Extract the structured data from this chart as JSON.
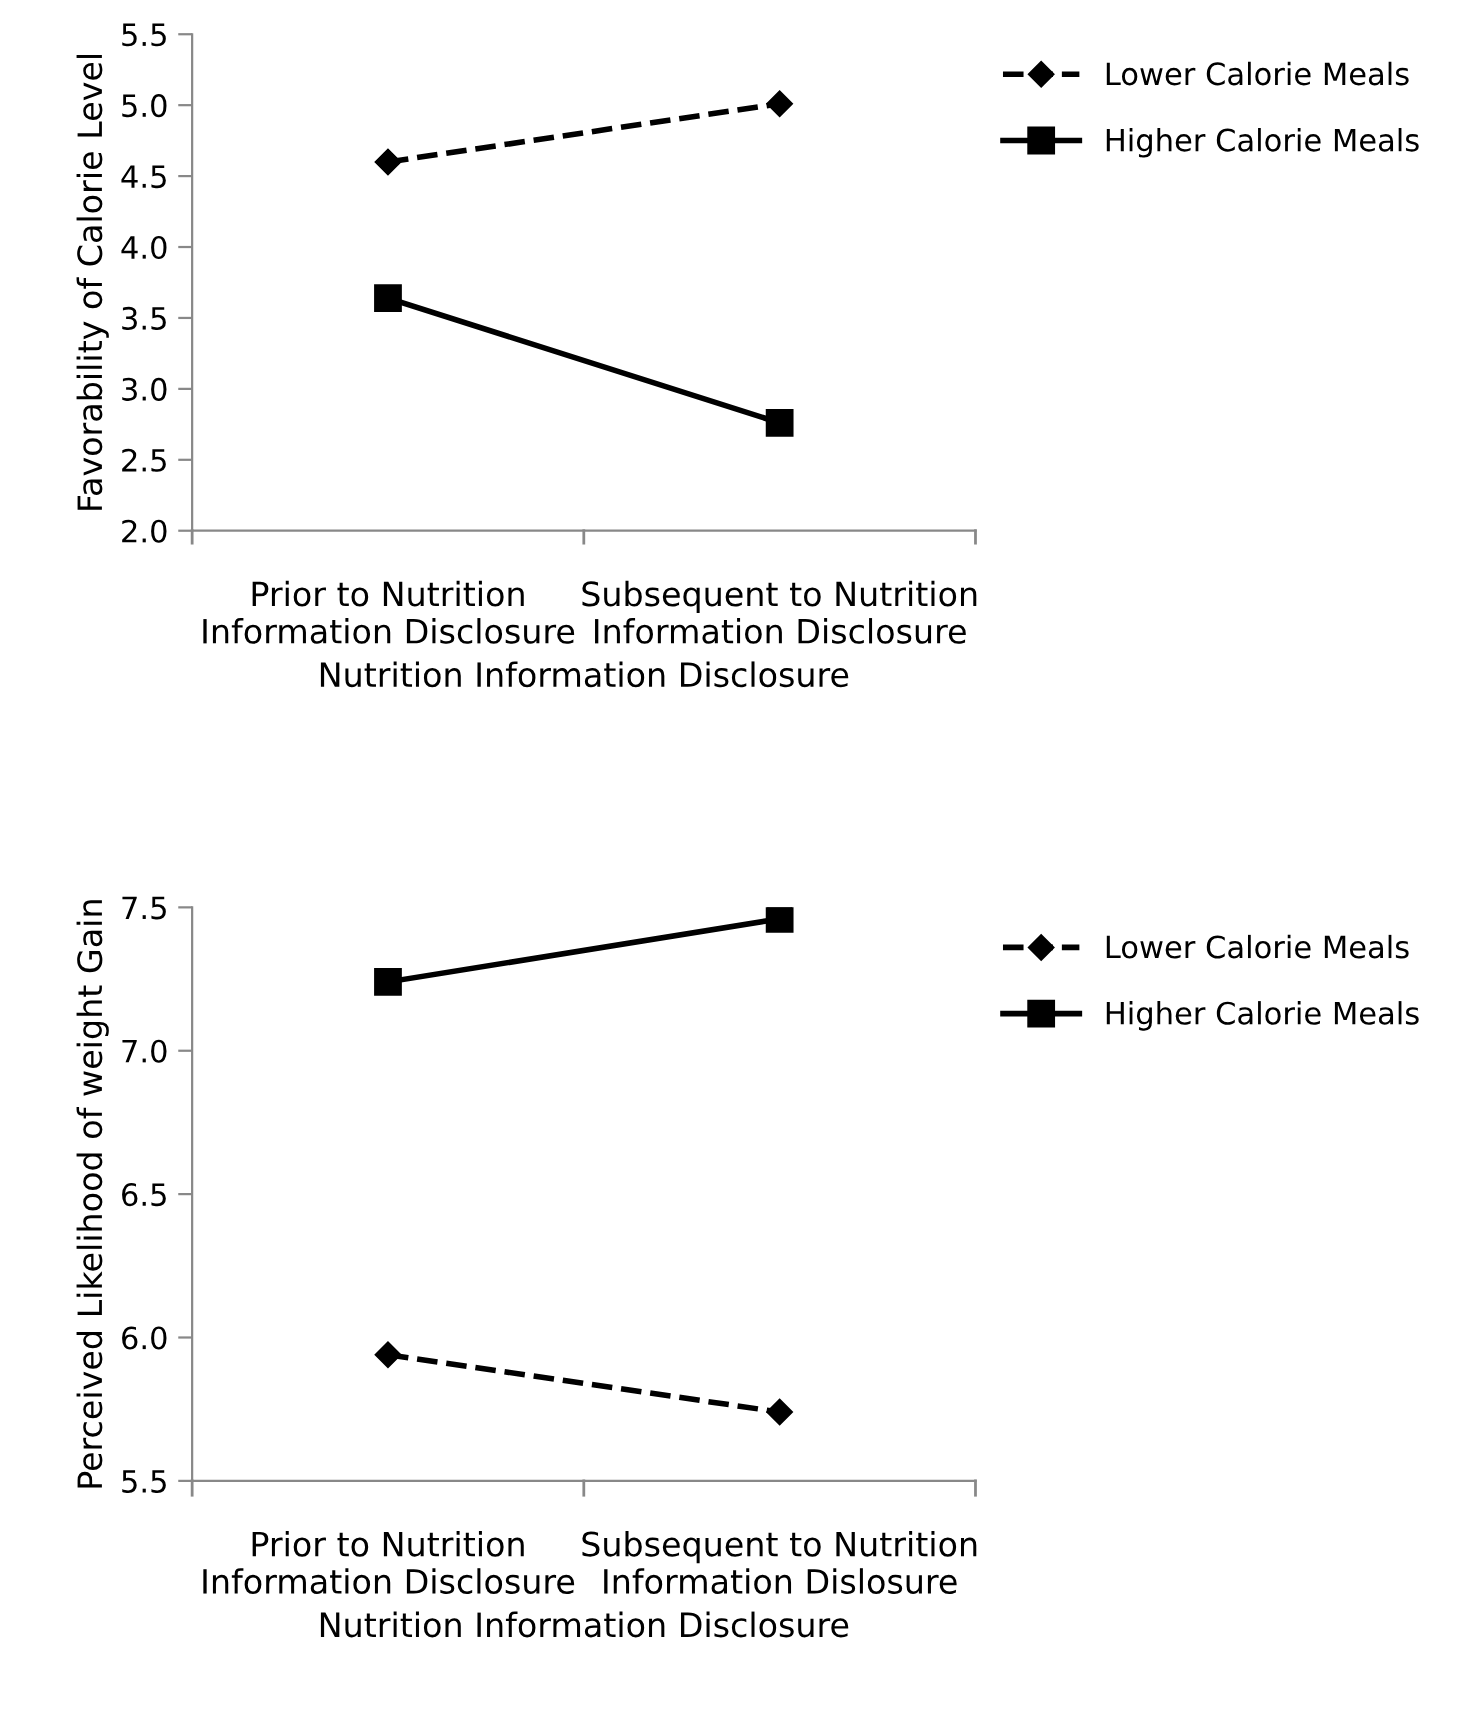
{
  "chart_data": [
    {
      "type": "line",
      "ylabel": "Favorability of Calorie Level",
      "xlabel": "Nutrition Information Disclosure",
      "categories": [
        "Prior to Nutrition\nInformation Disclosure",
        "Subsequent to Nutrition\nInformation Disclosure"
      ],
      "series": [
        {
          "name": "Lower Calorie Meals",
          "color": "#000000",
          "values": [
            4.6,
            5.01
          ],
          "marker": "diamond",
          "line_style": "dashed"
        },
        {
          "name": "Higher Calorie Meals",
          "color": "#000000",
          "values": [
            3.64,
            2.76
          ],
          "marker": "square",
          "line_style": "solid"
        }
      ],
      "ylim": [
        2.0,
        5.5
      ],
      "yticks": [
        {
          "value": 2.0,
          "label": "2.0"
        },
        {
          "value": 2.5,
          "label": "2.5"
        },
        {
          "value": 3.0,
          "label": "3.0"
        },
        {
          "value": 3.5,
          "label": "3.5"
        },
        {
          "value": 4.0,
          "label": "4.0"
        },
        {
          "value": 4.5,
          "label": "4.5"
        },
        {
          "value": 5.0,
          "label": "5.0"
        },
        {
          "value": 5.5,
          "label": "5.5"
        }
      ],
      "grid": false,
      "legend": "top right"
    },
    {
      "type": "line",
      "ylabel": "Perceived Likelihood of weight Gain",
      "xlabel": "Nutrition Information Disclosure",
      "categories": [
        "Prior to Nutrition\nInformation Disclosure",
        "Subsequent to Nutrition\nInformation Dislosure"
      ],
      "series": [
        {
          "name": "Lower Calorie Meals",
          "color": "#000000",
          "values": [
            5.94,
            5.74
          ],
          "marker": "diamond",
          "line_style": "dashed"
        },
        {
          "name": "Higher Calorie Meals",
          "color": "#000000",
          "values": [
            7.24,
            7.46
          ],
          "marker": "square",
          "line_style": "solid"
        }
      ],
      "ylim": [
        5.5,
        7.5
      ],
      "yticks": [
        {
          "value": 5.5,
          "label": "5.5"
        },
        {
          "value": 6.0,
          "label": "6.0"
        },
        {
          "value": 6.5,
          "label": "6.5"
        },
        {
          "value": 7.0,
          "label": "7.0"
        },
        {
          "value": 7.5,
          "label": "7.5"
        }
      ],
      "grid": false,
      "legend": "top right"
    }
  ]
}
